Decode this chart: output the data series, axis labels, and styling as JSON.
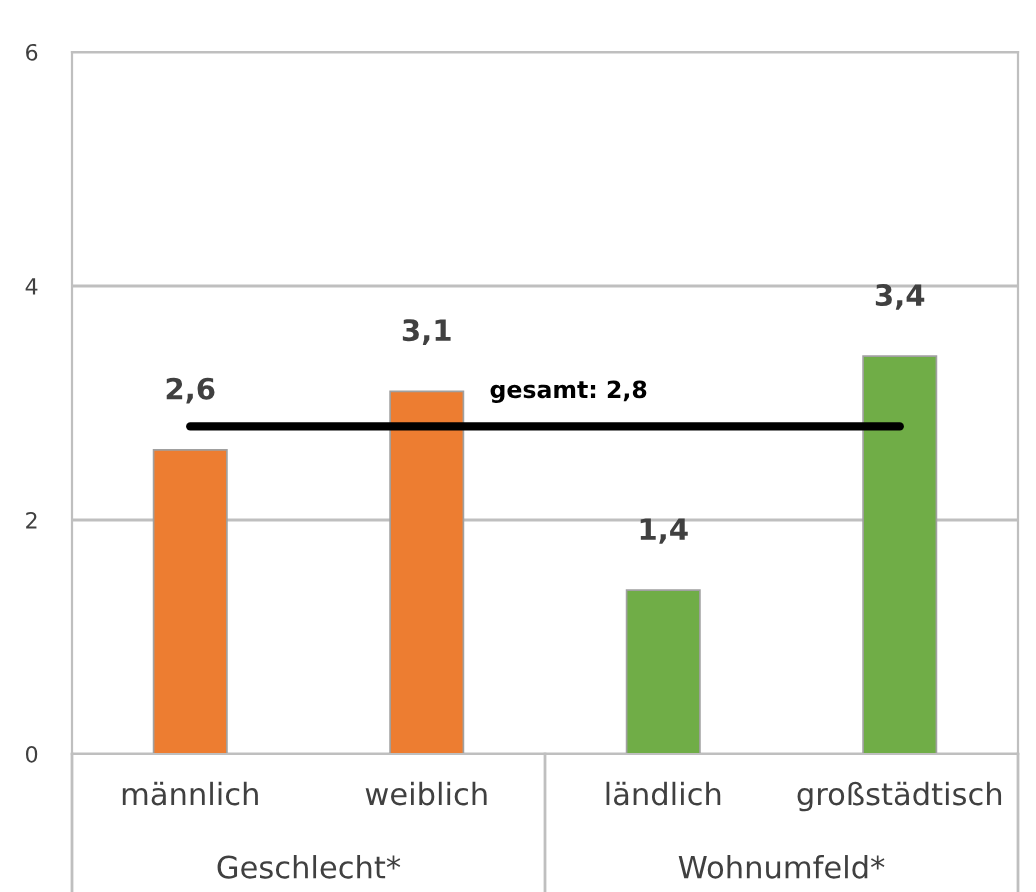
{
  "chart_data": {
    "type": "bar",
    "categories": [
      "männlich",
      "weiblich",
      "ländlich",
      "großstädtisch"
    ],
    "series": [
      {
        "values": [
          2.6,
          3.1,
          1.4,
          3.4
        ],
        "colors": [
          "#ed7d31",
          "#ed7d31",
          "#70ad47",
          "#70ad47"
        ],
        "value_labels": [
          "2,6",
          "3,1",
          "1,4",
          "3,4"
        ]
      },
      {
        "type": "line",
        "name": "gesamt: 2,8",
        "values": [
          2.8,
          2.8,
          2.8,
          2.8
        ],
        "color": "#000000"
      }
    ],
    "annotations": [
      "Geschlecht*",
      "Wohnumfeld*"
    ],
    "ylim": [
      0,
      6
    ],
    "yticks": [
      0,
      2,
      4,
      6
    ],
    "grid": "y",
    "legend": false,
    "marker": "none",
    "line_style": "solid"
  }
}
